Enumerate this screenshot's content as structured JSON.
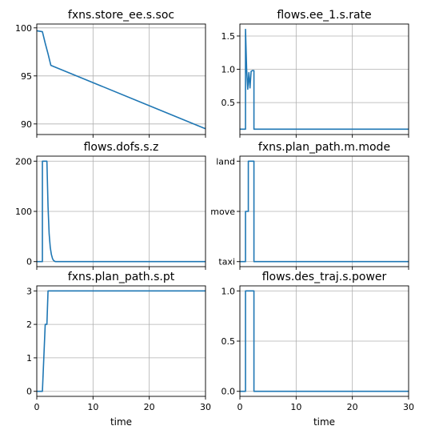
{
  "chart_data": [
    {
      "type": "line",
      "title": "fxns.store_ee.s.soc",
      "xlabel": "",
      "ylabel": "",
      "xlim": [
        0,
        30
      ],
      "ylim": [
        88.9,
        100.4
      ],
      "yticks": [
        90,
        95,
        100
      ],
      "ytick_labels": [
        "90",
        "95",
        "100"
      ],
      "xticks": [
        0,
        10,
        20,
        30
      ],
      "xtick_labels": [],
      "grid": true,
      "color": "#1f77b4",
      "x": [
        0,
        1.0,
        1.5,
        2.0,
        2.5,
        30
      ],
      "y": [
        99.7,
        99.6,
        98.4,
        97.3,
        96.1,
        89.5
      ]
    },
    {
      "type": "line",
      "title": "flows.ee_1.s.rate",
      "xlabel": "",
      "ylabel": "",
      "xlim": [
        0,
        30
      ],
      "ylim": [
        0.02,
        1.68
      ],
      "yticks": [
        0.5,
        1.0,
        1.5
      ],
      "ytick_labels": [
        "0.5",
        "1.0",
        "1.5"
      ],
      "xticks": [
        0,
        10,
        20,
        30
      ],
      "xtick_labels": [],
      "grid": true,
      "color": "#1f77b4",
      "x": [
        0,
        1.0,
        1.0,
        1.2,
        1.4,
        1.6,
        1.8,
        2.0,
        2.2,
        2.5,
        2.5,
        30
      ],
      "y": [
        0.1,
        0.1,
        1.6,
        1.0,
        0.7,
        0.95,
        0.72,
        0.97,
        0.98,
        0.98,
        0.1,
        0.1
      ]
    },
    {
      "type": "line",
      "title": "flows.dofs.s.z",
      "xlabel": "",
      "ylabel": "",
      "xlim": [
        0,
        30
      ],
      "ylim": [
        -10,
        210
      ],
      "yticks": [
        0,
        100,
        200
      ],
      "ytick_labels": [
        "0",
        "100",
        "200"
      ],
      "xticks": [
        0,
        10,
        20,
        30
      ],
      "xtick_labels": [],
      "grid": true,
      "color": "#1f77b4",
      "x": [
        0,
        1.0,
        1.0,
        1.8,
        2.0,
        2.2,
        2.4,
        2.6,
        2.8,
        3.0,
        3.3,
        30
      ],
      "y": [
        0,
        0,
        200,
        200,
        110,
        55,
        28,
        14,
        6,
        2,
        0,
        0
      ]
    },
    {
      "type": "line",
      "title": "fxns.plan_path.m.mode",
      "xlabel": "",
      "ylabel": "",
      "xlim": [
        0,
        30
      ],
      "ylim": [
        -0.1,
        2.1
      ],
      "yticks": [
        0,
        1,
        2
      ],
      "ytick_labels": [
        "taxi",
        "move",
        "land"
      ],
      "xticks": [
        0,
        10,
        20,
        30
      ],
      "xtick_labels": [],
      "grid": true,
      "color": "#1f77b4",
      "x": [
        0,
        1.0,
        1.0,
        1.5,
        1.5,
        2.5,
        2.5,
        30
      ],
      "y": [
        0,
        0,
        1,
        1,
        2,
        2,
        0,
        0
      ]
    },
    {
      "type": "line",
      "title": "fxns.plan_path.s.pt",
      "xlabel": "time",
      "ylabel": "",
      "xlim": [
        0,
        30
      ],
      "ylim": [
        -0.15,
        3.15
      ],
      "yticks": [
        0,
        1,
        2,
        3
      ],
      "ytick_labels": [
        "0",
        "1",
        "2",
        "3"
      ],
      "xticks": [
        0,
        10,
        20,
        30
      ],
      "xtick_labels": [
        "0",
        "10",
        "20",
        "30"
      ],
      "grid": true,
      "color": "#1f77b4",
      "x": [
        0,
        1.0,
        1.5,
        1.5,
        1.8,
        2.0,
        30
      ],
      "y": [
        0,
        0,
        2,
        2,
        2,
        3,
        3
      ]
    },
    {
      "type": "line",
      "title": "flows.des_traj.s.power",
      "xlabel": "time",
      "ylabel": "",
      "xlim": [
        0,
        30
      ],
      "ylim": [
        -0.05,
        1.05
      ],
      "yticks": [
        0.0,
        0.5,
        1.0
      ],
      "ytick_labels": [
        "0.0",
        "0.5",
        "1.0"
      ],
      "xticks": [
        0,
        10,
        20,
        30
      ],
      "xtick_labels": [
        "0",
        "10",
        "20",
        "30"
      ],
      "grid": true,
      "color": "#1f77b4",
      "x": [
        0,
        1.0,
        1.0,
        2.5,
        2.5,
        30
      ],
      "y": [
        0,
        0,
        1,
        1,
        0,
        0
      ]
    }
  ]
}
